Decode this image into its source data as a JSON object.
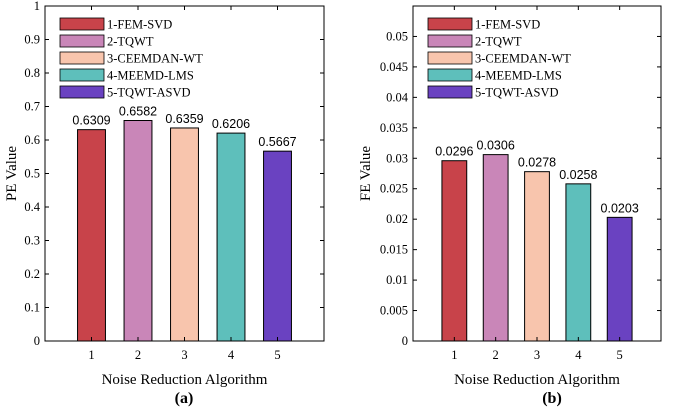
{
  "chart_data": [
    {
      "type": "bar",
      "panel_label": "(a)",
      "categories": [
        "1",
        "2",
        "3",
        "4",
        "5"
      ],
      "values": [
        0.6309,
        0.6582,
        0.6359,
        0.6206,
        0.5667
      ],
      "data_labels": [
        "0.6309",
        "0.6582",
        "0.6359",
        "0.6206",
        "0.5667"
      ],
      "xlabel": "Noise Reduction Algorithm",
      "ylabel": "PE Value",
      "ylim": [
        0,
        1
      ],
      "yticks": [
        0,
        0.1,
        0.2,
        0.3,
        0.4,
        0.5,
        0.6,
        0.7,
        0.8,
        0.9,
        1
      ],
      "ytick_labels": [
        "0",
        "0.1",
        "0.2",
        "0.3",
        "0.4",
        "0.5",
        "0.6",
        "0.7",
        "0.8",
        "0.9",
        "1"
      ],
      "grid": false,
      "legend_position": "top-left",
      "legend": [
        "1-FEM-SVD",
        "2-TQWT",
        "3-CEEMDAN-WT",
        "4-MEEMD-LMS",
        "5-TQWT-ASVD"
      ],
      "colors": [
        "#c8434a",
        "#c986b8",
        "#f8c5ad",
        "#5ebfbb",
        "#6a42c1"
      ]
    },
    {
      "type": "bar",
      "panel_label": "(b)",
      "categories": [
        "1",
        "2",
        "3",
        "4",
        "5"
      ],
      "values": [
        0.0296,
        0.0306,
        0.0278,
        0.0258,
        0.0203
      ],
      "data_labels": [
        "0.0296",
        "0.0306",
        "0.0278",
        "0.0258",
        "0.0203"
      ],
      "xlabel": "Noise Reduction Algorithm",
      "ylabel": "FE Value",
      "ylim": [
        0,
        0.055
      ],
      "yticks": [
        0,
        0.005,
        0.01,
        0.015,
        0.02,
        0.025,
        0.03,
        0.035,
        0.04,
        0.045,
        0.05
      ],
      "ytick_labels": [
        "0",
        "0.005",
        "0.01",
        "0.015",
        "0.02",
        "0.025",
        "0.03",
        "0.035",
        "0.04",
        "0.045",
        "0.05"
      ],
      "grid": false,
      "legend_position": "top-left",
      "legend": [
        "1-FEM-SVD",
        "2-TQWT",
        "3-CEEMDAN-WT",
        "4-MEEMD-LMS",
        "5-TQWT-ASVD"
      ],
      "colors": [
        "#c8434a",
        "#c986b8",
        "#f8c5ad",
        "#5ebfbb",
        "#6a42c1"
      ]
    }
  ]
}
